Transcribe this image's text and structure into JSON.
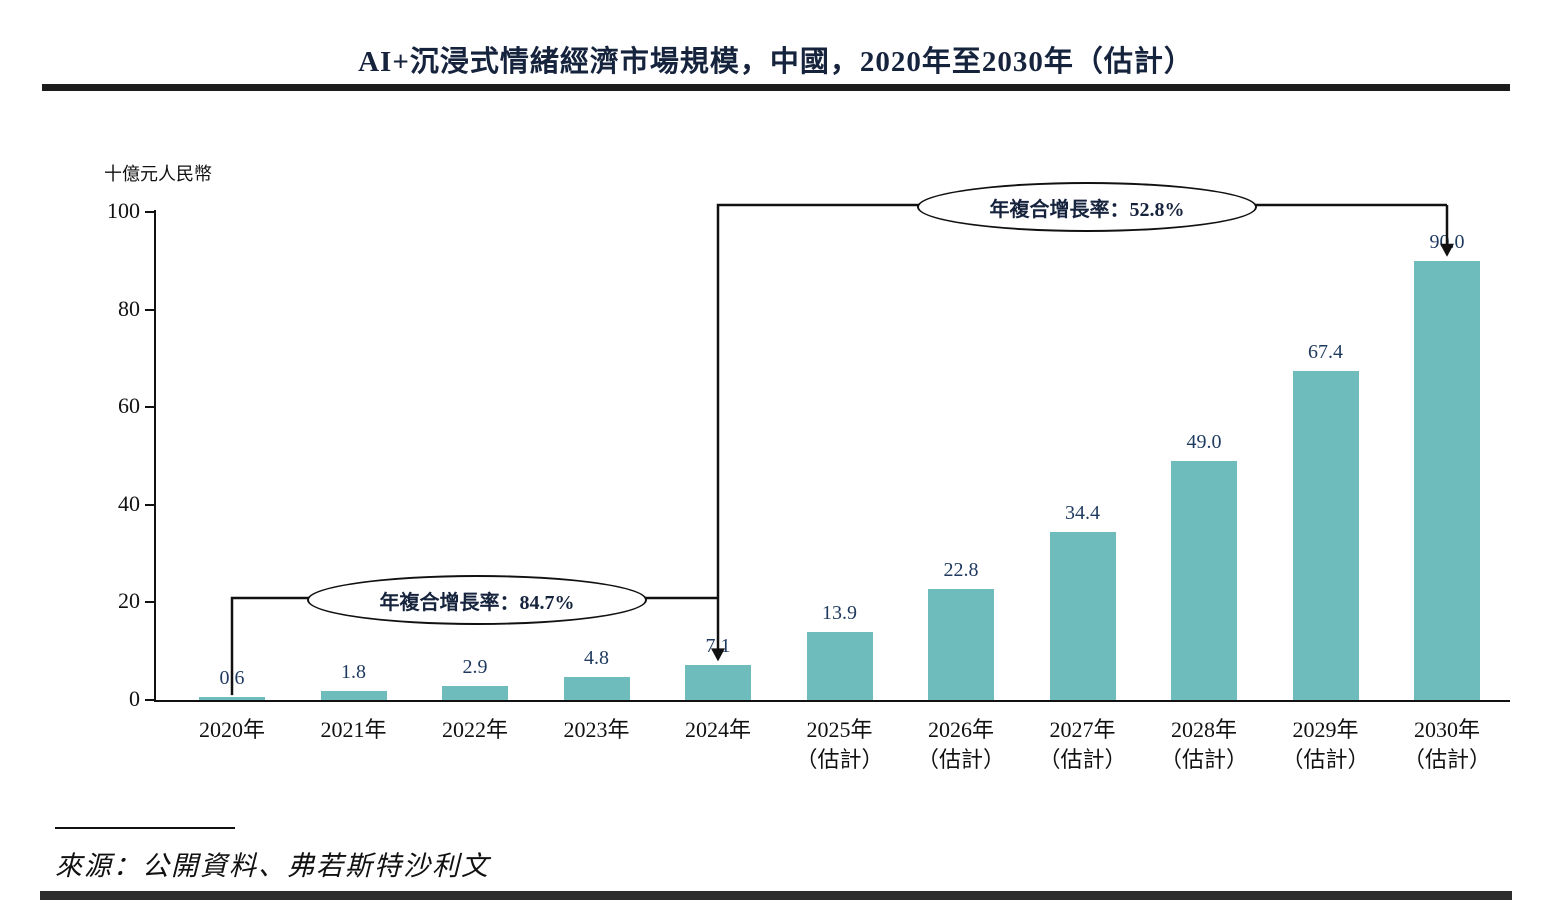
{
  "title": "AI+沉浸式情緒經濟市場規模，中國，2020年至2030年（估計）",
  "source": "來源：公開資料、弗若斯特沙利文",
  "colors": {
    "bar": "#6ebcbc",
    "value_label": "#1f3a5f",
    "axis": "#111111",
    "annotation_line": "#111111"
  },
  "chart_data": {
    "type": "bar",
    "title": "AI+沉浸式情緒經濟市場規模，中國，2020年至2030年（估計）",
    "ylabel": "十億元人民幣",
    "xlabel": "",
    "ylim": [
      0,
      100
    ],
    "yticks": [
      0,
      20,
      40,
      60,
      80,
      100
    ],
    "grid": false,
    "legend": "none",
    "categories": [
      "2020年",
      "2021年",
      "2022年",
      "2023年",
      "2024年",
      "2025年",
      "2026年",
      "2027年",
      "2028年",
      "2029年",
      "2030年"
    ],
    "sublabels": [
      "",
      "",
      "",
      "",
      "",
      "（估計）",
      "（估計）",
      "（估計）",
      "（估計）",
      "（估計）",
      "（估計）"
    ],
    "values": [
      0.6,
      1.8,
      2.9,
      4.8,
      7.1,
      13.9,
      22.8,
      34.4,
      49.0,
      67.4,
      90.0
    ],
    "value_labels": [
      "0.6",
      "1.8",
      "2.9",
      "4.8",
      "7.1",
      "13.9",
      "22.8",
      "34.4",
      "49.0",
      "67.4",
      "90.0"
    ],
    "annotations": [
      {
        "label": "年複合增長率：84.7%",
        "from_index": 0,
        "to_index": 4
      },
      {
        "label": "年複合增長率：52.8%",
        "from_index": 4,
        "to_index": 10
      }
    ]
  }
}
